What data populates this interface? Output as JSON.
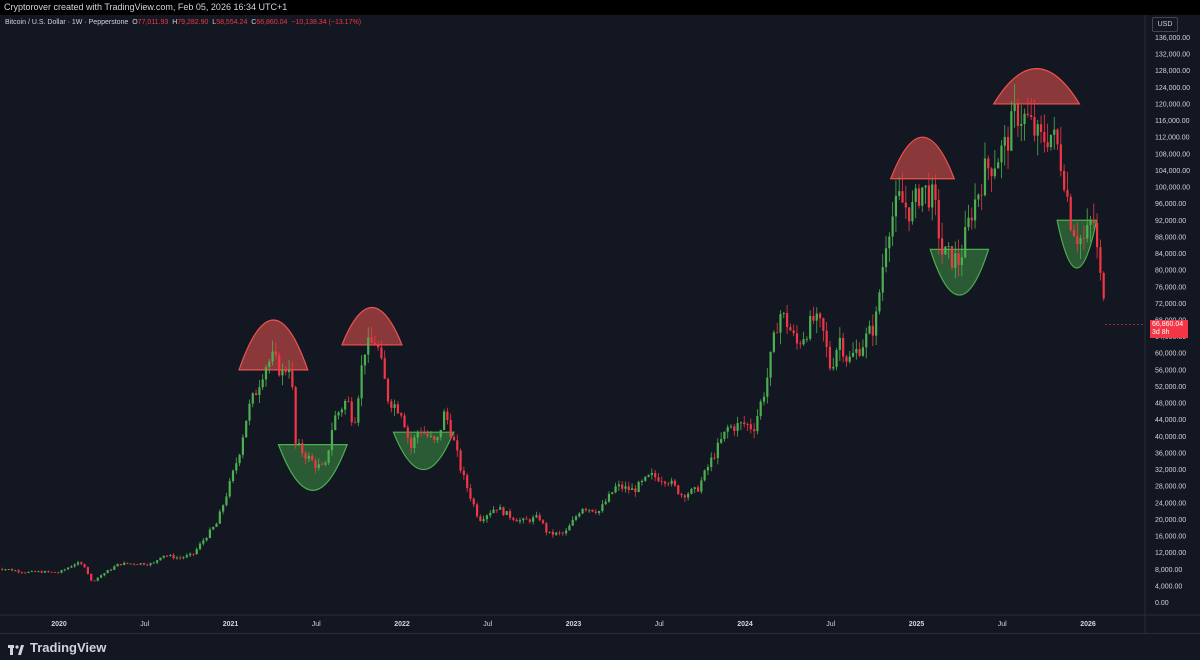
{
  "header": {
    "credit": "Cryptorover created with TradingView.com, Feb 05, 2026 16:34 UTC+1"
  },
  "legend": {
    "symbol": "Bitcoin / U.S. Dollar · 1W · Pepperstone",
    "open_label": "O",
    "open": "77,011.93",
    "high_label": "H",
    "high": "79,282.90",
    "low_label": "L",
    "low": "58,554.24",
    "close_label": "C",
    "close": "66,860.04",
    "change": "−10,138.34 (−13.17%)"
  },
  "axis": {
    "currency": "USD"
  },
  "price_tag": {
    "price": "66,860.04",
    "countdown": "3d 8h"
  },
  "footer": {
    "brand": "TradingView"
  },
  "colors": {
    "up": "#26a69a",
    "up_bright": "#4caf50",
    "down": "#f23645",
    "background": "#131722",
    "text": "#d1d4dc",
    "top_arc": "#ef5350",
    "bottom_arc": "#43a047"
  },
  "chart_data": {
    "type": "candlestick",
    "timeframe": "1W",
    "y_axis": {
      "scale": "linear",
      "ylim": [
        -3000,
        139000
      ],
      "ticks": [
        "136,000.00",
        "132,000.00",
        "128,000.00",
        "124,000.00",
        "120,000.00",
        "116,000.00",
        "112,000.00",
        "108,000.00",
        "104,000.00",
        "100,000.00",
        "96,000.00",
        "92,000.00",
        "88,000.00",
        "84,000.00",
        "80,000.00",
        "76,000.00",
        "72,000.00",
        "68,000.00",
        "64,000.00",
        "60,000.00",
        "56,000.00",
        "52,000.00",
        "48,000.00",
        "44,000.00",
        "40,000.00",
        "36,000.00",
        "32,000.00",
        "28,000.00",
        "24,000.00",
        "20,000.00",
        "16,000.00",
        "12,000.00",
        "8,000.00",
        "4,000.00",
        "0.00"
      ]
    },
    "x_axis": {
      "ticks": [
        {
          "label": "2020",
          "t": 2020.0,
          "bold": true
        },
        {
          "label": "Jul",
          "t": 2020.5,
          "bold": false
        },
        {
          "label": "2021",
          "t": 2021.0,
          "bold": true
        },
        {
          "label": "Jul",
          "t": 2021.5,
          "bold": false
        },
        {
          "label": "2022",
          "t": 2022.0,
          "bold": true
        },
        {
          "label": "Jul",
          "t": 2022.5,
          "bold": false
        },
        {
          "label": "2023",
          "t": 2023.0,
          "bold": true
        },
        {
          "label": "Jul",
          "t": 2023.5,
          "bold": false
        },
        {
          "label": "2024",
          "t": 2024.0,
          "bold": true
        },
        {
          "label": "Jul",
          "t": 2024.5,
          "bold": false
        },
        {
          "label": "2025",
          "t": 2025.0,
          "bold": true
        },
        {
          "label": "Jul",
          "t": 2025.5,
          "bold": false
        },
        {
          "label": "2026",
          "t": 2026.0,
          "bold": true
        }
      ]
    },
    "price_path": [
      [
        2019.63,
        8300
      ],
      [
        2019.7,
        8000
      ],
      [
        2019.8,
        7300
      ],
      [
        2019.9,
        7400
      ],
      [
        2020.0,
        7200
      ],
      [
        2020.1,
        9500
      ],
      [
        2020.15,
        8800
      ],
      [
        2020.19,
        5000
      ],
      [
        2020.25,
        6700
      ],
      [
        2020.35,
        9300
      ],
      [
        2020.45,
        9400
      ],
      [
        2020.55,
        9300
      ],
      [
        2020.6,
        11500
      ],
      [
        2020.7,
        10700
      ],
      [
        2020.78,
        11500
      ],
      [
        2020.85,
        15500
      ],
      [
        2020.92,
        19000
      ],
      [
        2021.0,
        29000
      ],
      [
        2021.05,
        36000
      ],
      [
        2021.1,
        46000
      ],
      [
        2021.15,
        51000
      ],
      [
        2021.2,
        57000
      ],
      [
        2021.25,
        59000
      ],
      [
        2021.3,
        55000
      ],
      [
        2021.35,
        58000
      ],
      [
        2021.38,
        38000
      ],
      [
        2021.45,
        35000
      ],
      [
        2021.5,
        33000
      ],
      [
        2021.55,
        32000
      ],
      [
        2021.6,
        44000
      ],
      [
        2021.68,
        49000
      ],
      [
        2021.72,
        43000
      ],
      [
        2021.78,
        61000
      ],
      [
        2021.85,
        63000
      ],
      [
        2021.92,
        49000
      ],
      [
        2022.0,
        46000
      ],
      [
        2022.05,
        37000
      ],
      [
        2022.1,
        42000
      ],
      [
        2022.2,
        38000
      ],
      [
        2022.25,
        46000
      ],
      [
        2022.3,
        39000
      ],
      [
        2022.35,
        31000
      ],
      [
        2022.45,
        20000
      ],
      [
        2022.55,
        23000
      ],
      [
        2022.62,
        21000
      ],
      [
        2022.7,
        19500
      ],
      [
        2022.8,
        20500
      ],
      [
        2022.85,
        16500
      ],
      [
        2022.95,
        16600
      ],
      [
        2023.05,
        23000
      ],
      [
        2023.15,
        22000
      ],
      [
        2023.25,
        28000
      ],
      [
        2023.35,
        27000
      ],
      [
        2023.45,
        30500
      ],
      [
        2023.55,
        29500
      ],
      [
        2023.63,
        26000
      ],
      [
        2023.72,
        27000
      ],
      [
        2023.8,
        34000
      ],
      [
        2023.9,
        42000
      ],
      [
        2024.0,
        43000
      ],
      [
        2024.05,
        42000
      ],
      [
        2024.12,
        52000
      ],
      [
        2024.2,
        70000
      ],
      [
        2024.25,
        67000
      ],
      [
        2024.3,
        62000
      ],
      [
        2024.4,
        68000
      ],
      [
        2024.45,
        66000
      ],
      [
        2024.5,
        56000
      ],
      [
        2024.55,
        64000
      ],
      [
        2024.6,
        58000
      ],
      [
        2024.68,
        62000
      ],
      [
        2024.76,
        67000
      ],
      [
        2024.83,
        90000
      ],
      [
        2024.9,
        97000
      ],
      [
        2024.97,
        94000
      ],
      [
        2025.03,
        100000
      ],
      [
        2025.1,
        97000
      ],
      [
        2025.15,
        84000
      ],
      [
        2025.25,
        82000
      ],
      [
        2025.32,
        94000
      ],
      [
        2025.4,
        104000
      ],
      [
        2025.45,
        106000
      ],
      [
        2025.52,
        110000
      ],
      [
        2025.58,
        118000
      ],
      [
        2025.65,
        116000
      ],
      [
        2025.72,
        111000
      ],
      [
        2025.78,
        113000
      ],
      [
        2025.82,
        110000
      ],
      [
        2025.86,
        103000
      ],
      [
        2025.9,
        92000
      ],
      [
        2025.94,
        88000
      ],
      [
        2025.98,
        87000
      ],
      [
        2026.03,
        93000
      ],
      [
        2026.07,
        78000
      ],
      [
        2026.09,
        77000
      ],
      [
        2026.1,
        66860
      ]
    ],
    "annotations": [
      {
        "type": "top-arc",
        "t_start": 2021.05,
        "t_end": 2021.45,
        "price": 56000,
        "peak": 68000
      },
      {
        "type": "bottom-arc",
        "t_start": 2021.28,
        "t_end": 2021.68,
        "price": 38000,
        "trough": 27000
      },
      {
        "type": "top-arc",
        "t_start": 2021.65,
        "t_end": 2022.0,
        "price": 62000,
        "peak": 71000
      },
      {
        "type": "bottom-arc",
        "t_start": 2021.95,
        "t_end": 2022.3,
        "price": 41000,
        "trough": 32000
      },
      {
        "type": "top-arc",
        "t_start": 2024.85,
        "t_end": 2025.22,
        "price": 102000,
        "peak": 112000
      },
      {
        "type": "bottom-arc",
        "t_start": 2025.08,
        "t_end": 2025.42,
        "price": 85000,
        "trough": 74000
      },
      {
        "type": "top-arc",
        "t_start": 2025.45,
        "t_end": 2025.95,
        "price": 120000,
        "peak": 128500
      },
      {
        "type": "bottom-arc",
        "t_start": 2025.82,
        "t_end": 2026.05,
        "price": 92000,
        "trough": 80500
      }
    ],
    "last": {
      "price": 66860.04,
      "price_label": "66,860.04",
      "countdown": "3d 8h"
    }
  }
}
